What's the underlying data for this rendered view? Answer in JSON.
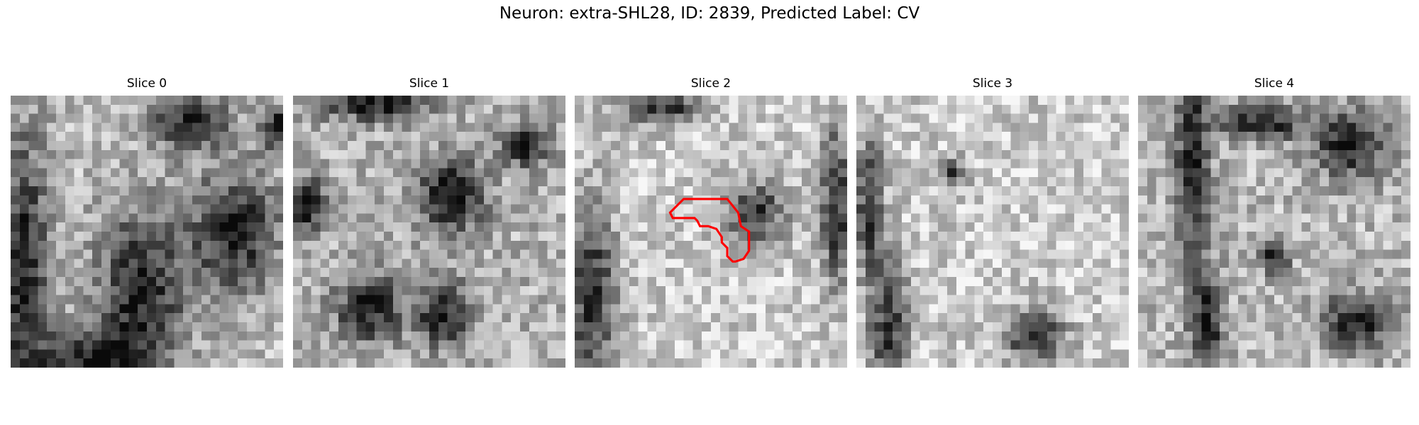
{
  "figure": {
    "title": "Neuron: extra-SHL28, ID: 2839, Predicted Label: CV"
  },
  "panels": [
    {
      "title": "Slice 0",
      "seed": 11,
      "blobs": [
        [
          0.66,
          0.1,
          0.14,
          0.1
        ],
        [
          0.82,
          0.5,
          0.16,
          0.22
        ],
        [
          0.48,
          0.72,
          0.16,
          0.3
        ],
        [
          0.05,
          0.65,
          0.1,
          0.5
        ],
        [
          0.3,
          0.98,
          0.18,
          0.12
        ],
        [
          0.98,
          0.12,
          0.06,
          0.08
        ]
      ],
      "base": 0.74
    },
    {
      "title": "Slice 1",
      "seed": 23,
      "blobs": [
        [
          0.58,
          0.37,
          0.12,
          0.14
        ],
        [
          0.28,
          0.78,
          0.12,
          0.12
        ],
        [
          0.55,
          0.8,
          0.09,
          0.12
        ],
        [
          0.3,
          0.03,
          0.2,
          0.06
        ],
        [
          0.05,
          0.4,
          0.07,
          0.1
        ],
        [
          0.85,
          0.18,
          0.08,
          0.08
        ]
      ],
      "base": 0.7
    },
    {
      "title": "Slice 2",
      "seed": 37,
      "blobs": [
        [
          0.66,
          0.43,
          0.11,
          0.11
        ],
        [
          0.06,
          0.72,
          0.09,
          0.34
        ],
        [
          0.32,
          0.05,
          0.14,
          0.06
        ],
        [
          0.96,
          0.4,
          0.06,
          0.3
        ]
      ],
      "base": 0.8,
      "contour": [
        [
          0.35,
          0.43
        ],
        [
          0.4,
          0.38
        ],
        [
          0.56,
          0.38
        ],
        [
          0.6,
          0.43
        ],
        [
          0.61,
          0.48
        ],
        [
          0.64,
          0.5
        ],
        [
          0.64,
          0.57
        ],
        [
          0.62,
          0.6
        ],
        [
          0.59,
          0.61
        ],
        [
          0.58,
          0.61
        ],
        [
          0.56,
          0.59
        ],
        [
          0.56,
          0.56
        ],
        [
          0.54,
          0.54
        ],
        [
          0.54,
          0.52
        ],
        [
          0.52,
          0.49
        ],
        [
          0.49,
          0.48
        ],
        [
          0.46,
          0.48
        ],
        [
          0.45,
          0.46
        ],
        [
          0.44,
          0.45
        ],
        [
          0.36,
          0.45
        ]
      ]
    },
    {
      "title": "Slice 3",
      "seed": 41,
      "blobs": [
        [
          0.65,
          0.88,
          0.11,
          0.1
        ],
        [
          0.12,
          0.85,
          0.07,
          0.25
        ],
        [
          0.05,
          0.4,
          0.05,
          0.25
        ],
        [
          0.35,
          0.28,
          0.05,
          0.05
        ]
      ],
      "base": 0.8
    },
    {
      "title": "Slice 4",
      "seed": 53,
      "blobs": [
        [
          0.25,
          0.85,
          0.06,
          0.2
        ],
        [
          0.2,
          0.25,
          0.06,
          0.35
        ],
        [
          0.45,
          0.1,
          0.15,
          0.06
        ],
        [
          0.78,
          0.18,
          0.14,
          0.12
        ],
        [
          0.8,
          0.83,
          0.12,
          0.1
        ],
        [
          0.5,
          0.6,
          0.05,
          0.05
        ]
      ],
      "base": 0.72
    }
  ]
}
